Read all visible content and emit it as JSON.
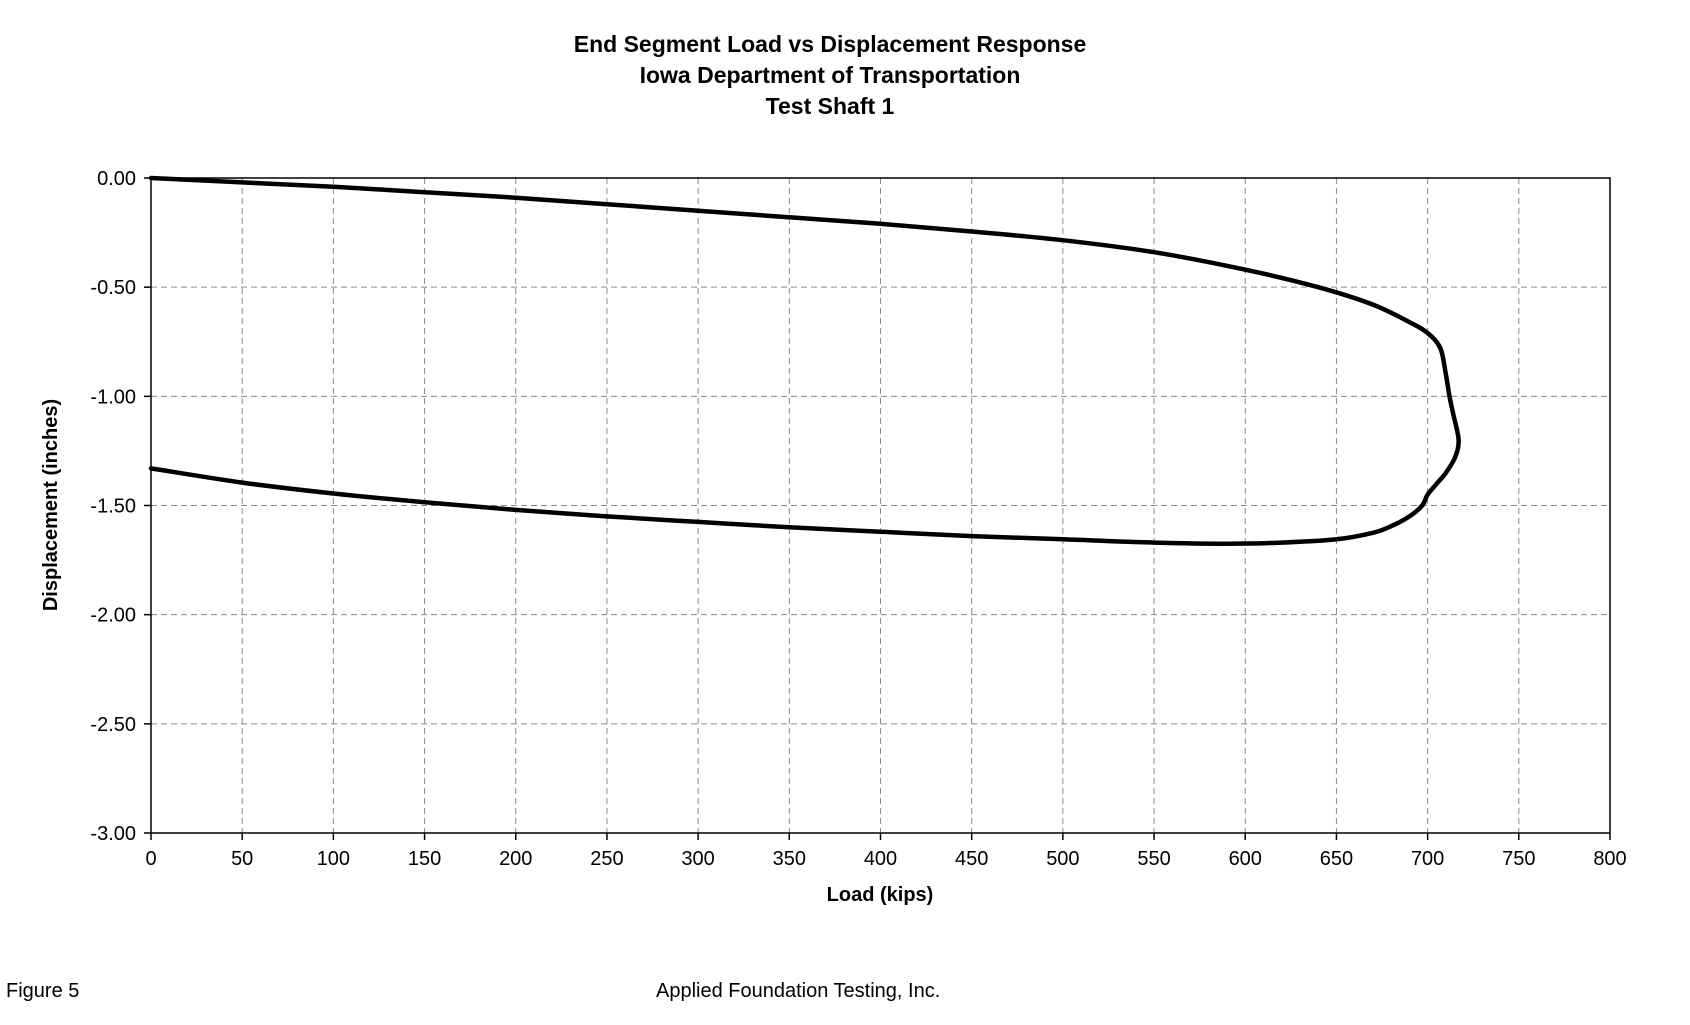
{
  "chart_data": {
    "type": "line",
    "title": "End Segment Load vs Displacement Response",
    "subtitle_lines": [
      "Iowa Department of Transportation",
      "Test Shaft 1"
    ],
    "xlabel": "Load (kips)",
    "ylabel": "Displacement (inches)",
    "xlim": [
      0,
      800
    ],
    "ylim": [
      -3.0,
      0.0
    ],
    "x_ticks": [
      0,
      50,
      100,
      150,
      200,
      250,
      300,
      350,
      400,
      450,
      500,
      550,
      600,
      650,
      700,
      750,
      800
    ],
    "x_tick_labels": [
      "0",
      "50",
      "100",
      "150",
      "200",
      "250",
      "300",
      "350",
      "400",
      "450",
      "500",
      "550",
      "600",
      "650",
      "700",
      "750",
      "800"
    ],
    "y_ticks": [
      0.0,
      -0.5,
      -1.0,
      -1.5,
      -2.0,
      -2.5,
      -3.0
    ],
    "y_tick_labels": [
      "0.00",
      "-0.50",
      "-1.00",
      "-1.50",
      "-2.00",
      "-2.50",
      "-3.00"
    ],
    "grid": true,
    "grid_style": "dashed",
    "series": [
      {
        "color": "#000000",
        "x": [
          0,
          50,
          100,
          150,
          200,
          250,
          300,
          350,
          400,
          450,
          500,
          550,
          600,
          640,
          670,
          690,
          700,
          707,
          710,
          712,
          714,
          717,
          715,
          710,
          705,
          700,
          697,
          690,
          680,
          670,
          650,
          620,
          590,
          550,
          500,
          450,
          400,
          350,
          300,
          250,
          200,
          150,
          100,
          50,
          0
        ],
        "y": [
          0.0,
          -0.02,
          -0.04,
          -0.065,
          -0.09,
          -0.12,
          -0.15,
          -0.18,
          -0.21,
          -0.245,
          -0.285,
          -0.34,
          -0.42,
          -0.5,
          -0.58,
          -0.66,
          -0.71,
          -0.78,
          -0.9,
          -1.0,
          -1.08,
          -1.2,
          -1.28,
          -1.35,
          -1.4,
          -1.45,
          -1.5,
          -1.55,
          -1.595,
          -1.625,
          -1.655,
          -1.67,
          -1.675,
          -1.67,
          -1.655,
          -1.64,
          -1.62,
          -1.6,
          -1.575,
          -1.55,
          -1.52,
          -1.485,
          -1.445,
          -1.395,
          -1.33
        ]
      }
    ]
  },
  "footer": {
    "figure": "Figure 5",
    "company": "Applied Foundation Testing, Inc."
  }
}
